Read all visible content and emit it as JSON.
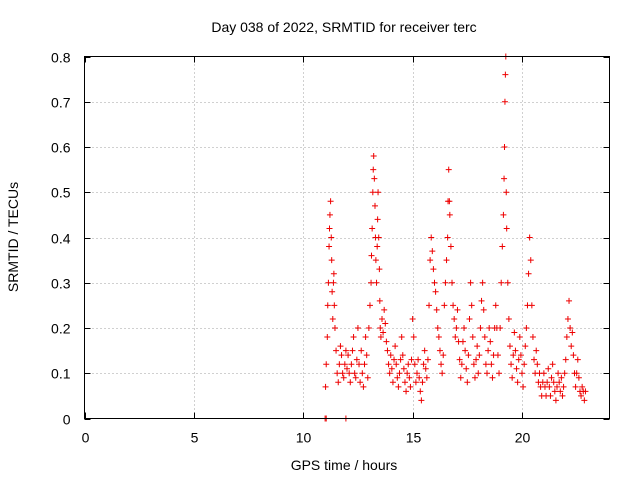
{
  "chart_data": {
    "type": "scatter",
    "title": "Day 038 of 2022, SRMTID for receiver terc",
    "xlabel": "GPS time / hours",
    "ylabel": "SRMTID / TECUs",
    "xlim": [
      0,
      24
    ],
    "ylim": [
      0,
      0.8
    ],
    "xticks": [
      0,
      5,
      10,
      15,
      20
    ],
    "xtick_labels": [
      "0",
      "5",
      "10",
      "15",
      "20"
    ],
    "yticks": [
      0,
      0.1,
      0.2,
      0.3,
      0.4,
      0.5,
      0.6,
      0.7,
      0.8
    ],
    "ytick_labels": [
      "0",
      "0.1",
      "0.2",
      "0.3",
      "0.4",
      "0.5",
      "0.6",
      "0.7",
      "0.8"
    ],
    "grid": true,
    "marker": "+",
    "color": "#ee0000",
    "series": [
      {
        "name": "SRMTID",
        "points": [
          [
            11.0,
            0.0
          ],
          [
            11.05,
            0.0
          ],
          [
            11.95,
            0.0
          ],
          [
            11.02,
            0.07
          ],
          [
            11.05,
            0.12
          ],
          [
            11.1,
            0.18
          ],
          [
            11.12,
            0.25
          ],
          [
            11.15,
            0.3
          ],
          [
            11.18,
            0.38
          ],
          [
            11.2,
            0.42
          ],
          [
            11.22,
            0.45
          ],
          [
            11.25,
            0.48
          ],
          [
            11.28,
            0.4
          ],
          [
            11.3,
            0.35
          ],
          [
            11.32,
            0.28
          ],
          [
            11.35,
            0.22
          ],
          [
            11.38,
            0.3
          ],
          [
            11.4,
            0.32
          ],
          [
            11.42,
            0.25
          ],
          [
            11.45,
            0.2
          ],
          [
            11.5,
            0.15
          ],
          [
            11.55,
            0.1
          ],
          [
            11.6,
            0.08
          ],
          [
            11.65,
            0.12
          ],
          [
            11.7,
            0.16
          ],
          [
            11.75,
            0.14
          ],
          [
            11.8,
            0.1
          ],
          [
            11.85,
            0.09
          ],
          [
            11.9,
            0.12
          ],
          [
            11.95,
            0.15
          ],
          [
            12.0,
            0.11
          ],
          [
            12.05,
            0.14
          ],
          [
            12.1,
            0.1
          ],
          [
            12.15,
            0.08
          ],
          [
            12.2,
            0.12
          ],
          [
            12.25,
            0.15
          ],
          [
            12.3,
            0.18
          ],
          [
            12.35,
            0.1
          ],
          [
            12.4,
            0.09
          ],
          [
            12.45,
            0.13
          ],
          [
            12.5,
            0.2
          ],
          [
            12.55,
            0.12
          ],
          [
            12.6,
            0.08
          ],
          [
            12.65,
            0.15
          ],
          [
            12.7,
            0.1
          ],
          [
            12.75,
            0.07
          ],
          [
            12.8,
            0.12
          ],
          [
            12.85,
            0.18
          ],
          [
            12.9,
            0.14
          ],
          [
            12.95,
            0.09
          ],
          [
            13.0,
            0.2
          ],
          [
            13.05,
            0.25
          ],
          [
            13.1,
            0.3
          ],
          [
            13.12,
            0.36
          ],
          [
            13.15,
            0.42
          ],
          [
            13.18,
            0.5
          ],
          [
            13.2,
            0.55
          ],
          [
            13.22,
            0.58
          ],
          [
            13.25,
            0.53
          ],
          [
            13.28,
            0.47
          ],
          [
            13.3,
            0.4
          ],
          [
            13.32,
            0.35
          ],
          [
            13.35,
            0.3
          ],
          [
            13.38,
            0.38
          ],
          [
            13.4,
            0.44
          ],
          [
            13.42,
            0.5
          ],
          [
            13.45,
            0.4
          ],
          [
            13.48,
            0.33
          ],
          [
            13.5,
            0.26
          ],
          [
            13.52,
            0.2
          ],
          [
            13.55,
            0.18
          ],
          [
            13.6,
            0.22
          ],
          [
            13.65,
            0.19
          ],
          [
            13.7,
            0.24
          ],
          [
            13.75,
            0.21
          ],
          [
            13.8,
            0.17
          ],
          [
            13.85,
            0.15
          ],
          [
            13.9,
            0.12
          ],
          [
            13.95,
            0.1
          ],
          [
            14.0,
            0.14
          ],
          [
            14.05,
            0.11
          ],
          [
            14.1,
            0.08
          ],
          [
            14.15,
            0.13
          ],
          [
            14.2,
            0.16
          ],
          [
            14.25,
            0.12
          ],
          [
            14.3,
            0.09
          ],
          [
            14.35,
            0.07
          ],
          [
            14.4,
            0.1
          ],
          [
            14.45,
            0.13
          ],
          [
            14.5,
            0.18
          ],
          [
            14.55,
            0.14
          ],
          [
            14.6,
            0.11
          ],
          [
            14.65,
            0.08
          ],
          [
            14.7,
            0.06
          ],
          [
            14.75,
            0.1
          ],
          [
            14.8,
            0.12
          ],
          [
            14.85,
            0.09
          ],
          [
            14.9,
            0.07
          ],
          [
            14.95,
            0.13
          ],
          [
            15.0,
            0.22
          ],
          [
            15.05,
            0.18
          ],
          [
            15.1,
            0.12
          ],
          [
            15.15,
            0.08
          ],
          [
            15.2,
            0.1
          ],
          [
            15.25,
            0.13
          ],
          [
            15.3,
            0.09
          ],
          [
            15.35,
            0.06
          ],
          [
            15.4,
            0.04
          ],
          [
            15.45,
            0.08
          ],
          [
            15.5,
            0.12
          ],
          [
            15.55,
            0.15
          ],
          [
            15.6,
            0.11
          ],
          [
            15.65,
            0.09
          ],
          [
            15.7,
            0.13
          ],
          [
            15.75,
            0.25
          ],
          [
            15.8,
            0.35
          ],
          [
            15.85,
            0.4
          ],
          [
            15.9,
            0.37
          ],
          [
            15.95,
            0.33
          ],
          [
            16.0,
            0.3
          ],
          [
            16.05,
            0.28
          ],
          [
            16.1,
            0.24
          ],
          [
            16.15,
            0.2
          ],
          [
            16.2,
            0.18
          ],
          [
            16.25,
            0.15
          ],
          [
            16.3,
            0.12
          ],
          [
            16.35,
            0.1
          ],
          [
            16.4,
            0.14
          ],
          [
            16.45,
            0.25
          ],
          [
            16.5,
            0.3
          ],
          [
            16.55,
            0.35
          ],
          [
            16.6,
            0.4
          ],
          [
            16.62,
            0.48
          ],
          [
            16.65,
            0.55
          ],
          [
            16.68,
            0.48
          ],
          [
            16.7,
            0.45
          ],
          [
            16.75,
            0.38
          ],
          [
            16.8,
            0.3
          ],
          [
            16.85,
            0.25
          ],
          [
            16.9,
            0.22
          ],
          [
            16.95,
            0.18
          ],
          [
            17.0,
            0.2
          ],
          [
            17.05,
            0.24
          ],
          [
            17.1,
            0.17
          ],
          [
            17.15,
            0.13
          ],
          [
            17.2,
            0.09
          ],
          [
            17.25,
            0.12
          ],
          [
            17.3,
            0.17
          ],
          [
            17.35,
            0.2
          ],
          [
            17.4,
            0.15
          ],
          [
            17.45,
            0.11
          ],
          [
            17.5,
            0.08
          ],
          [
            17.55,
            0.14
          ],
          [
            17.6,
            0.22
          ],
          [
            17.65,
            0.3
          ],
          [
            17.7,
            0.25
          ],
          [
            17.75,
            0.18
          ],
          [
            17.8,
            0.12
          ],
          [
            17.85,
            0.09
          ],
          [
            17.9,
            0.13
          ],
          [
            17.95,
            0.16
          ],
          [
            18.0,
            0.1
          ],
          [
            18.05,
            0.14
          ],
          [
            18.1,
            0.2
          ],
          [
            18.15,
            0.26
          ],
          [
            18.2,
            0.3
          ],
          [
            18.25,
            0.24
          ],
          [
            18.3,
            0.18
          ],
          [
            18.35,
            0.12
          ],
          [
            18.4,
            0.1
          ],
          [
            18.45,
            0.15
          ],
          [
            18.5,
            0.2
          ],
          [
            18.55,
            0.17
          ],
          [
            18.6,
            0.12
          ],
          [
            18.65,
            0.09
          ],
          [
            18.7,
            0.14
          ],
          [
            18.75,
            0.2
          ],
          [
            18.8,
            0.25
          ],
          [
            18.85,
            0.2
          ],
          [
            18.9,
            0.14
          ],
          [
            18.95,
            0.1
          ],
          [
            19.0,
            0.2
          ],
          [
            19.05,
            0.3
          ],
          [
            19.1,
            0.38
          ],
          [
            19.15,
            0.45
          ],
          [
            19.18,
            0.53
          ],
          [
            19.2,
            0.6
          ],
          [
            19.22,
            0.7
          ],
          [
            19.24,
            0.76
          ],
          [
            19.26,
            0.8
          ],
          [
            19.28,
            0.5
          ],
          [
            19.3,
            0.42
          ],
          [
            19.35,
            0.3
          ],
          [
            19.4,
            0.22
          ],
          [
            19.45,
            0.16
          ],
          [
            19.5,
            0.12
          ],
          [
            19.55,
            0.09
          ],
          [
            19.6,
            0.14
          ],
          [
            19.65,
            0.19
          ],
          [
            19.7,
            0.15
          ],
          [
            19.75,
            0.11
          ],
          [
            19.8,
            0.08
          ],
          [
            19.85,
            0.13
          ],
          [
            19.9,
            0.18
          ],
          [
            19.95,
            0.14
          ],
          [
            20.0,
            0.1
          ],
          [
            20.05,
            0.07
          ],
          [
            20.1,
            0.12
          ],
          [
            20.15,
            0.16
          ],
          [
            20.2,
            0.2
          ],
          [
            20.25,
            0.25
          ],
          [
            20.3,
            0.32
          ],
          [
            20.35,
            0.4
          ],
          [
            20.4,
            0.35
          ],
          [
            20.45,
            0.25
          ],
          [
            20.5,
            0.18
          ],
          [
            20.55,
            0.13
          ],
          [
            20.6,
            0.1
          ],
          [
            20.65,
            0.15
          ],
          [
            20.7,
            0.12
          ],
          [
            20.75,
            0.08
          ],
          [
            20.8,
            0.1
          ],
          [
            20.85,
            0.07
          ],
          [
            20.9,
            0.05
          ],
          [
            20.95,
            0.08
          ],
          [
            21.0,
            0.1
          ],
          [
            21.05,
            0.07
          ],
          [
            21.1,
            0.05
          ],
          [
            21.15,
            0.08
          ],
          [
            21.2,
            0.11
          ],
          [
            21.25,
            0.07
          ],
          [
            21.3,
            0.05
          ],
          [
            21.35,
            0.09
          ],
          [
            21.4,
            0.12
          ],
          [
            21.45,
            0.08
          ],
          [
            21.5,
            0.06
          ],
          [
            21.55,
            0.04
          ],
          [
            21.6,
            0.07
          ],
          [
            21.65,
            0.1
          ],
          [
            21.7,
            0.08
          ],
          [
            21.75,
            0.06
          ],
          [
            21.8,
            0.09
          ],
          [
            21.85,
            0.05
          ],
          [
            21.9,
            0.07
          ],
          [
            21.95,
            0.1
          ],
          [
            22.0,
            0.13
          ],
          [
            22.05,
            0.18
          ],
          [
            22.1,
            0.22
          ],
          [
            22.15,
            0.26
          ],
          [
            22.2,
            0.2
          ],
          [
            22.25,
            0.16
          ],
          [
            22.3,
            0.19
          ],
          [
            22.35,
            0.14
          ],
          [
            22.4,
            0.1
          ],
          [
            22.45,
            0.07
          ],
          [
            22.5,
            0.1
          ],
          [
            22.55,
            0.13
          ],
          [
            22.6,
            0.09
          ],
          [
            22.65,
            0.06
          ],
          [
            22.7,
            0.05
          ],
          [
            22.75,
            0.07
          ],
          [
            22.8,
            0.06
          ],
          [
            22.85,
            0.04
          ],
          [
            22.9,
            0.06
          ]
        ]
      }
    ]
  }
}
